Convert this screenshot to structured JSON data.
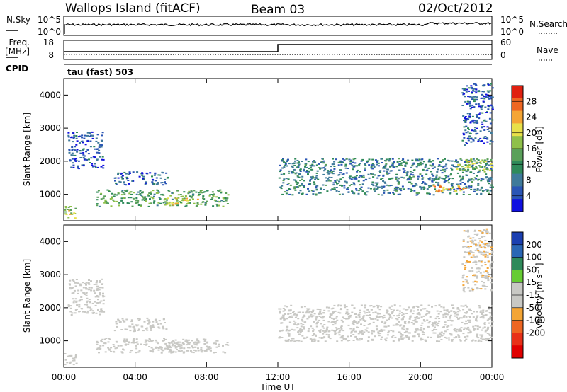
{
  "header": {
    "station": "Wallops Island (fitACF)",
    "beam": "Beam 03",
    "date": "02/Oct/2012"
  },
  "nsky_panel": {
    "left_label": "N.Sky",
    "left_ticks": [
      "10^5",
      "10^0"
    ],
    "right_label": "N.Search",
    "right_ticks": [
      "10^5",
      "10^0"
    ]
  },
  "freq_panel": {
    "left_label_1": "Freq.",
    "left_label_2": "[MHz]",
    "left_ticks": [
      "18",
      "8"
    ],
    "right_label": "Nave",
    "right_ticks": [
      "60",
      "0"
    ],
    "cpid_label": "CPID",
    "program": "tau (fast) 503"
  },
  "colors": {
    "power_scale": [
      "#1010e0",
      "#2a55b5",
      "#3f7a9a",
      "#2f8a5a",
      "#5aa05a",
      "#8fc04a",
      "#e8e04a",
      "#f4a535",
      "#ee6622",
      "#e02010"
    ],
    "velocity_scale": [
      "#1b3fb0",
      "#2a66b4",
      "#2f8a5a",
      "#66cc33",
      "#c8c8c4",
      "#c8c8c4",
      "#f4a535",
      "#ee6622",
      "#e83018",
      "#e00000"
    ]
  },
  "chart_data": [
    {
      "type": "heatmap",
      "name": "power",
      "xlabel": "",
      "ylabel": "Slant Range [km]",
      "ylim": [
        200,
        4500
      ],
      "yticks": [
        "1000",
        "2000",
        "3000",
        "4000"
      ],
      "colorbar_label": "Power [dB]",
      "colorbar_ticks": [
        "4",
        "8",
        "12",
        "16",
        "20",
        "24",
        "28"
      ],
      "colorbar_range": [
        0,
        32
      ],
      "regions": [
        {
          "t_start": 0.0,
          "t_end": 0.7,
          "range_low": 300,
          "range_high": 650,
          "value": 18
        },
        {
          "t_start": 0.2,
          "t_end": 2.2,
          "range_low": 1800,
          "range_high": 2900,
          "value": 6
        },
        {
          "t_start": 2.8,
          "t_end": 5.8,
          "range_low": 1300,
          "range_high": 1700,
          "value": 6
        },
        {
          "t_start": 1.8,
          "t_end": 9.2,
          "range_low": 650,
          "range_high": 1150,
          "value": 14
        },
        {
          "t_start": 5.5,
          "t_end": 7.5,
          "range_low": 700,
          "range_high": 900,
          "value": 21
        },
        {
          "t_start": 12.0,
          "t_end": 24.0,
          "range_low": 1000,
          "range_high": 2100,
          "value": 9
        },
        {
          "t_start": 20.5,
          "t_end": 22.5,
          "range_low": 1100,
          "range_high": 1300,
          "value": 24
        },
        {
          "t_start": 22.0,
          "t_end": 24.0,
          "range_low": 1700,
          "range_high": 2100,
          "value": 18
        },
        {
          "t_start": 22.3,
          "t_end": 24.0,
          "range_low": 2500,
          "range_high": 4400,
          "value": 6
        }
      ]
    },
    {
      "type": "heatmap",
      "name": "velocity",
      "xlabel": "Time UT",
      "ylabel": "Slant Range [km]",
      "ylim": [
        200,
        4500
      ],
      "yticks": [
        "1000",
        "2000",
        "3000",
        "4000"
      ],
      "xticks": [
        "00:00",
        "04:00",
        "08:00",
        "12:00",
        "16:00",
        "20:00",
        "00:00"
      ],
      "xlim": [
        0,
        24
      ],
      "colorbar_label": "Velocity [m s⁻¹]",
      "colorbar_ticks": [
        "200",
        "100",
        "50",
        "15",
        "-15",
        "-50",
        "-100",
        "-200"
      ],
      "colorbar_range": [
        250,
        -250
      ],
      "regions": [
        {
          "t_start": 0.0,
          "t_end": 0.7,
          "range_low": 300,
          "range_high": 650,
          "value": 0
        },
        {
          "t_start": 0.2,
          "t_end": 2.2,
          "range_low": 1800,
          "range_high": 2900,
          "value": 0
        },
        {
          "t_start": 2.8,
          "t_end": 5.8,
          "range_low": 1300,
          "range_high": 1700,
          "value": -30
        },
        {
          "t_start": 1.8,
          "t_end": 9.2,
          "range_low": 650,
          "range_high": 1100,
          "value": 0
        },
        {
          "t_start": 5.5,
          "t_end": 7.5,
          "range_low": 700,
          "range_high": 1000,
          "value": 30
        },
        {
          "t_start": 12.0,
          "t_end": 24.0,
          "range_low": 1000,
          "range_high": 2100,
          "value": 0
        },
        {
          "t_start": 22.3,
          "t_end": 24.0,
          "range_low": 2500,
          "range_high": 4400,
          "value": -40
        }
      ]
    }
  ]
}
